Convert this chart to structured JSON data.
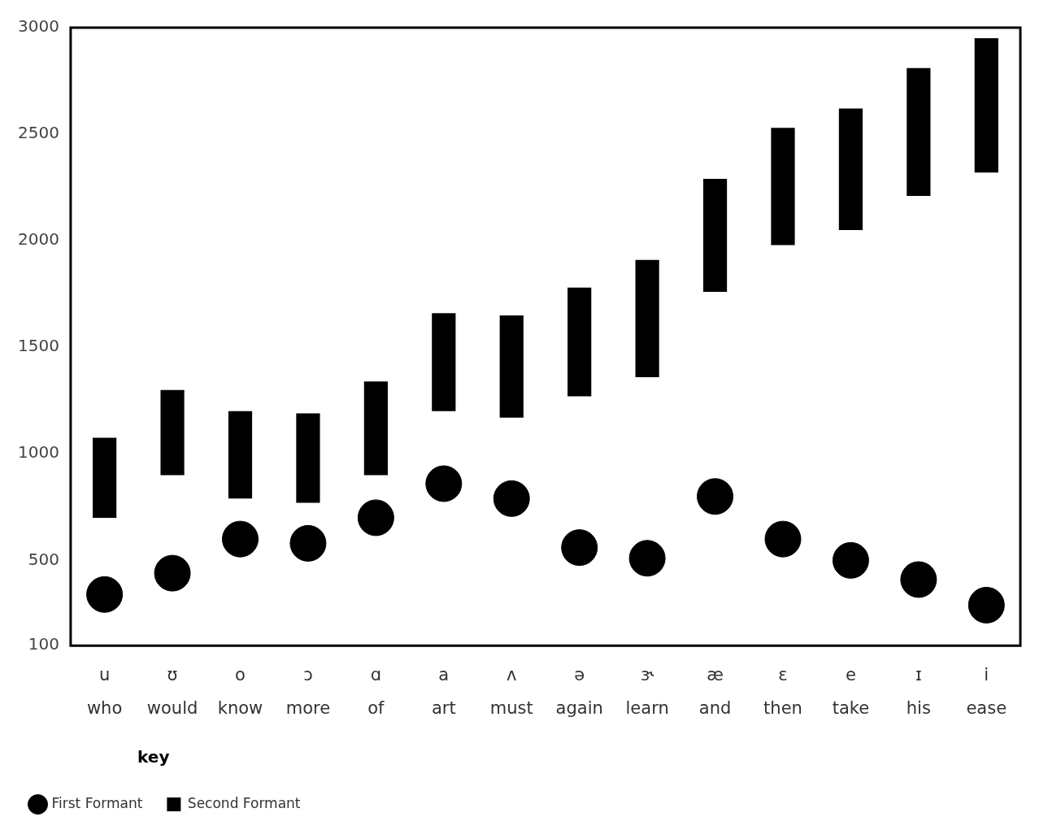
{
  "chart_data": {
    "type": "bar",
    "categories": [
      "u",
      "ʊ",
      "o",
      "ɔ",
      "ɑ",
      "a",
      "ʌ",
      "ə",
      "ɝ",
      "æ",
      "ɛ",
      "e",
      "ɪ",
      "i"
    ],
    "series": [
      {
        "name": "First Formant",
        "type": "scatter",
        "color": "#000000",
        "values": [
          340,
          440,
          600,
          580,
          700,
          860,
          790,
          560,
          510,
          800,
          600,
          500,
          410,
          290
        ]
      },
      {
        "name": "Second Formant",
        "color": "#000000",
        "base": [
          700,
          900,
          790,
          770,
          900,
          1200,
          1170,
          1270,
          1360,
          1760,
          1980,
          2050,
          2210,
          2320
        ],
        "values": [
          375,
          400,
          410,
          420,
          440,
          460,
          480,
          510,
          550,
          530,
          550,
          570,
          600,
          630
        ]
      }
    ],
    "annotations": [
      "who",
      "would",
      "know",
      "more",
      "of",
      "art",
      "must",
      "again",
      "learn",
      "and",
      "then",
      "take",
      "his",
      "ease"
    ],
    "ylim": [
      100,
      3000
    ],
    "yticks": [
      100,
      500,
      1000,
      1500,
      2000,
      2500,
      3000
    ],
    "grid": false,
    "legend": "bottom left",
    "legend_title": "key",
    "marker": "circle"
  }
}
